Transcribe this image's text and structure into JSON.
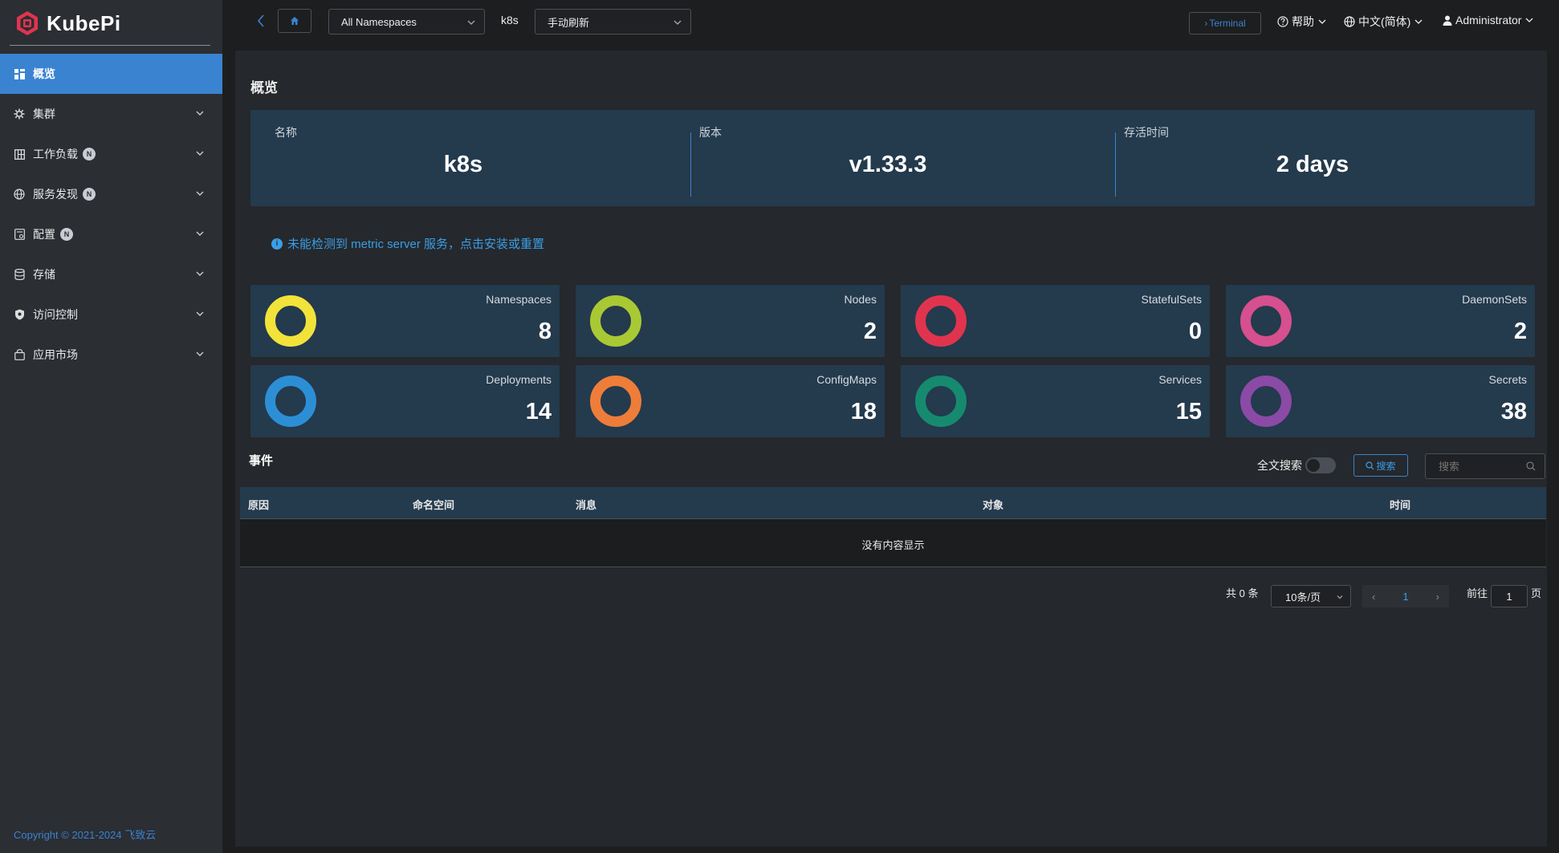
{
  "app": {
    "name": "KubePi",
    "copyright_prefix": "Copyright © 2021-2024",
    "copyright_link": "飞致云"
  },
  "sidebar": {
    "items": [
      {
        "label": "概览",
        "icon": "dashboard-icon",
        "active": true
      },
      {
        "label": "集群",
        "icon": "cluster-icon"
      },
      {
        "label": "工作负载",
        "icon": "workload-icon",
        "badge": "N"
      },
      {
        "label": "服务发现",
        "icon": "globe-icon",
        "badge": "N"
      },
      {
        "label": "配置",
        "icon": "config-icon",
        "badge": "N"
      },
      {
        "label": "存储",
        "icon": "database-icon"
      },
      {
        "label": "访问控制",
        "icon": "shield-icon"
      },
      {
        "label": "应用市场",
        "icon": "shopping-bag-icon"
      }
    ]
  },
  "header": {
    "namespace_select": "All Namespaces",
    "cluster_name": "k8s",
    "refresh_select": "手动刷新",
    "terminal_label": "Terminal",
    "help_label": "帮助",
    "language_label": "中文(简体)",
    "user_label": "Administrator"
  },
  "overview": {
    "title": "概览",
    "info": [
      {
        "label": "名称",
        "value": "k8s"
      },
      {
        "label": "版本",
        "value": "v1.33.3"
      },
      {
        "label": "存活时间",
        "value": "2 days"
      }
    ],
    "notice": "未能检测到 metric server 服务，点击安装或重置",
    "stats": [
      {
        "label": "Namespaces",
        "value": "8",
        "color": "#f2e33a"
      },
      {
        "label": "Nodes",
        "value": "2",
        "color": "#a9c934"
      },
      {
        "label": "StatefulSets",
        "value": "0",
        "color": "#e0344e"
      },
      {
        "label": "DaemonSets",
        "value": "2",
        "color": "#d64f8e"
      },
      {
        "label": "Deployments",
        "value": "14",
        "color": "#2c8fd6"
      },
      {
        "label": "ConfigMaps",
        "value": "18",
        "color": "#ee7d3a"
      },
      {
        "label": "Services",
        "value": "15",
        "color": "#168a6f"
      },
      {
        "label": "Secrets",
        "value": "38",
        "color": "#8b4aa6"
      }
    ]
  },
  "events": {
    "title": "事件",
    "fulltext_label": "全文搜索",
    "search_button": "搜索",
    "search_placeholder": "搜索",
    "columns": [
      "原因",
      "命名空间",
      "消息",
      "对象",
      "时间"
    ],
    "empty_text": "没有内容显示",
    "pagination": {
      "total": "共 0 条",
      "page_size": "10条/页",
      "current_page": "1",
      "goto_prefix": "前往",
      "goto_value": "1",
      "goto_suffix": "页"
    }
  }
}
